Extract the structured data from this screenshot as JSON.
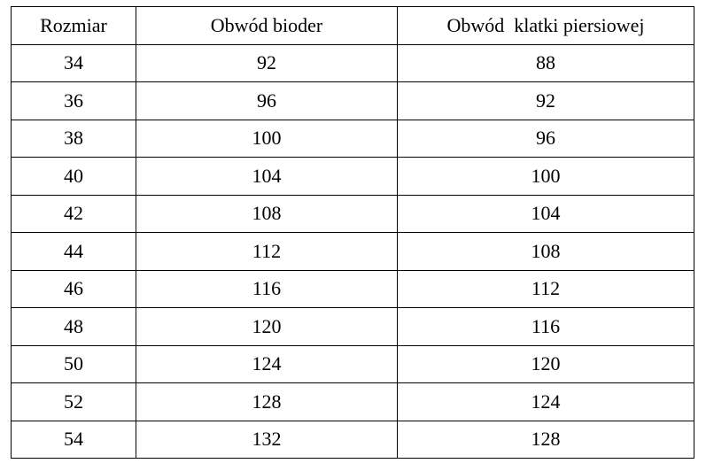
{
  "headers": [
    "Rozmiar",
    "Obwód bioder",
    "Obwód  klatki piersiowej"
  ],
  "rows": [
    [
      "34",
      "92",
      "88"
    ],
    [
      "36",
      "96",
      "92"
    ],
    [
      "38",
      "100",
      "96"
    ],
    [
      "40",
      "104",
      "100"
    ],
    [
      "42",
      "108",
      "104"
    ],
    [
      "44",
      "112",
      "108"
    ],
    [
      "46",
      "116",
      "112"
    ],
    [
      "48",
      "120",
      "116"
    ],
    [
      "50",
      "124",
      "120"
    ],
    [
      "52",
      "128",
      "124"
    ],
    [
      "54",
      "132",
      "128"
    ]
  ]
}
